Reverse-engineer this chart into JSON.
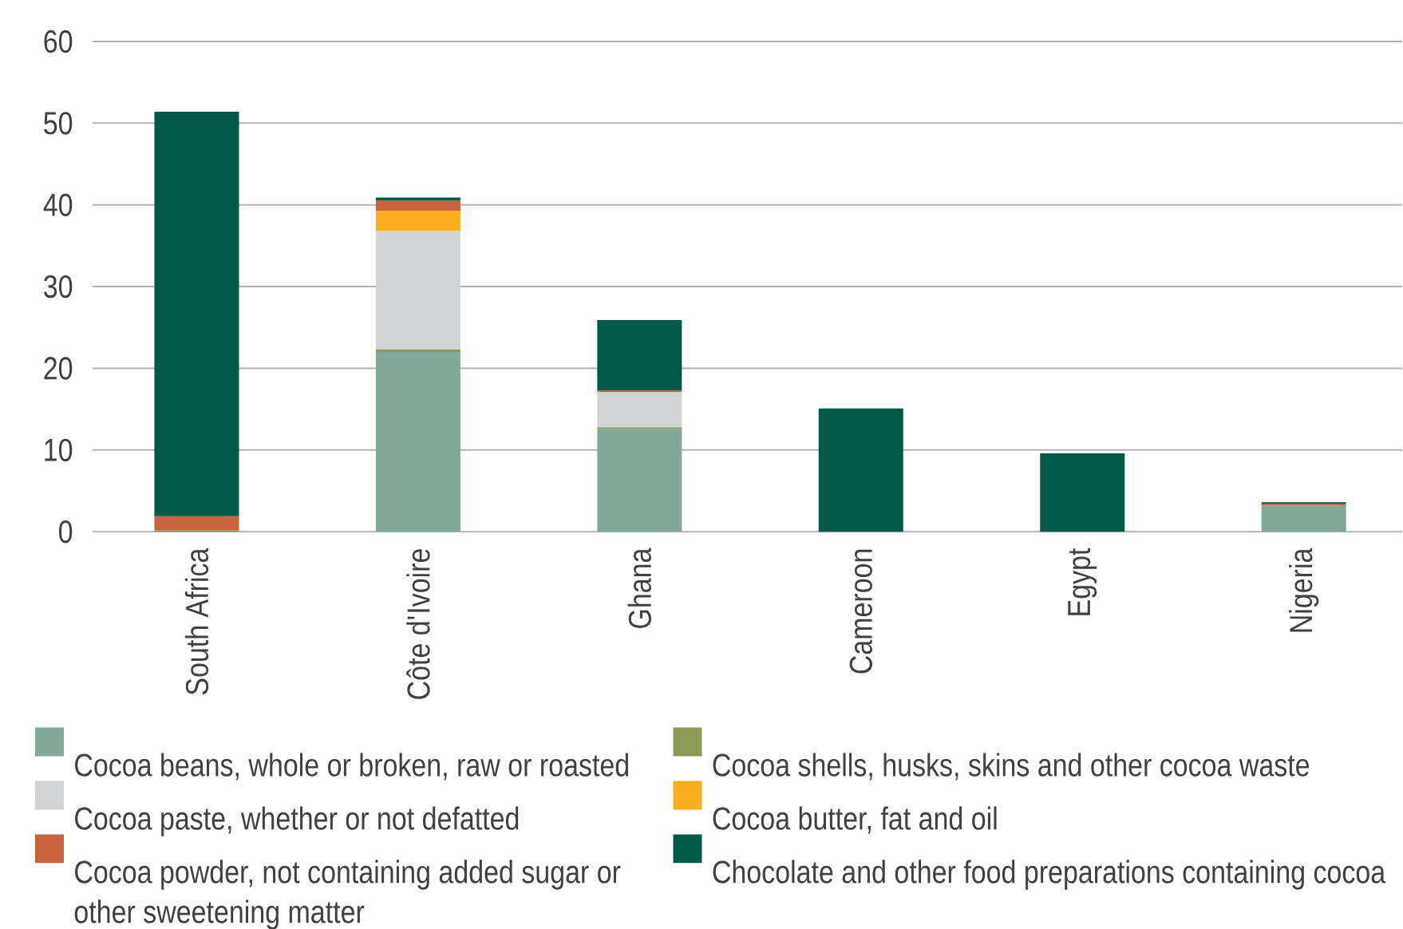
{
  "chart_data": {
    "type": "bar",
    "stacked": true,
    "categories": [
      "South Africa",
      "Côte d'Ivoire",
      "Ghana",
      "Cameroon",
      "Egypt",
      "Nigeria"
    ],
    "series": [
      {
        "name": "Cocoa beans, whole or broken, raw or roasted",
        "color": "#84a898",
        "values": [
          null,
          22.0,
          12.6,
          null,
          null,
          3.2
        ]
      },
      {
        "name": "Cocoa shells, husks, skins and other cocoa waste",
        "color": "#8c9a55",
        "values": [
          0.2,
          0.3,
          0.2,
          null,
          null,
          null
        ]
      },
      {
        "name": "Cocoa paste, whether or not defatted",
        "color": "#d1d3d4",
        "values": [
          null,
          14.5,
          4.3,
          null,
          null,
          null
        ]
      },
      {
        "name": "Cocoa butter, fat and oil",
        "color": "#f9ae1f",
        "values": [
          null,
          2.5,
          null,
          null,
          null,
          null
        ]
      },
      {
        "name": "Cocoa powder, not containing added sugar or other sweetening matter",
        "color": "#c8623f",
        "values": [
          1.7,
          1.2,
          0.2,
          null,
          null,
          0.2
        ]
      },
      {
        "name": "Chocolate and other food preparations containing cocoa",
        "color": "#005a45",
        "values": [
          49.5,
          0.4,
          8.6,
          15.1,
          9.6,
          0.2
        ]
      }
    ],
    "ylim": [
      0,
      60
    ],
    "yticks": [
      0,
      10,
      20,
      30,
      40,
      50,
      60
    ],
    "grid": "y",
    "legend": "bottom"
  }
}
